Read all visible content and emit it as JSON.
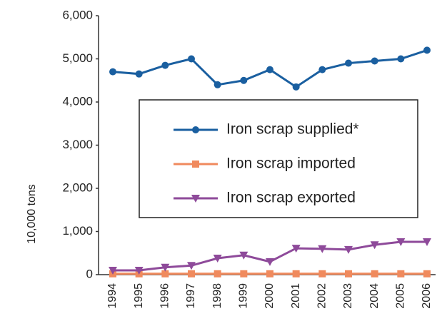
{
  "chart_data": {
    "type": "line",
    "ylabel": "10,000 tons",
    "categories": [
      "1994",
      "1995",
      "1996",
      "1997",
      "1998",
      "1999",
      "2000",
      "2001",
      "2002",
      "2003",
      "2004",
      "2005",
      "2006"
    ],
    "series": [
      {
        "name": "Iron scrap supplied*",
        "color": "#1a5fa0",
        "marker": "circle",
        "values": [
          4700,
          4650,
          4850,
          5000,
          4400,
          4500,
          4750,
          4350,
          4750,
          4900,
          4950,
          5000,
          5200
        ]
      },
      {
        "name": "Iron scrap imported",
        "color": "#f08a5d",
        "marker": "square",
        "values": [
          20,
          20,
          20,
          20,
          20,
          20,
          20,
          20,
          20,
          20,
          20,
          20,
          20
        ]
      },
      {
        "name": "Iron scrap exported",
        "color": "#8e4a9a",
        "marker": "triangle-down",
        "values": [
          100,
          100,
          170,
          210,
          380,
          450,
          300,
          610,
          600,
          580,
          690,
          760,
          760
        ]
      }
    ],
    "ylim": [
      0,
      6000
    ],
    "yticks": [
      0,
      {
        "value": 1000,
        "label": "1,000"
      },
      {
        "value": 2000,
        "label": "2,000"
      },
      {
        "value": 3000,
        "label": "3,000"
      },
      {
        "value": 4000,
        "label": "4,000"
      },
      {
        "value": 5000,
        "label": "5,000"
      },
      {
        "value": 6000,
        "label": "6,000"
      }
    ],
    "legend": "right"
  }
}
